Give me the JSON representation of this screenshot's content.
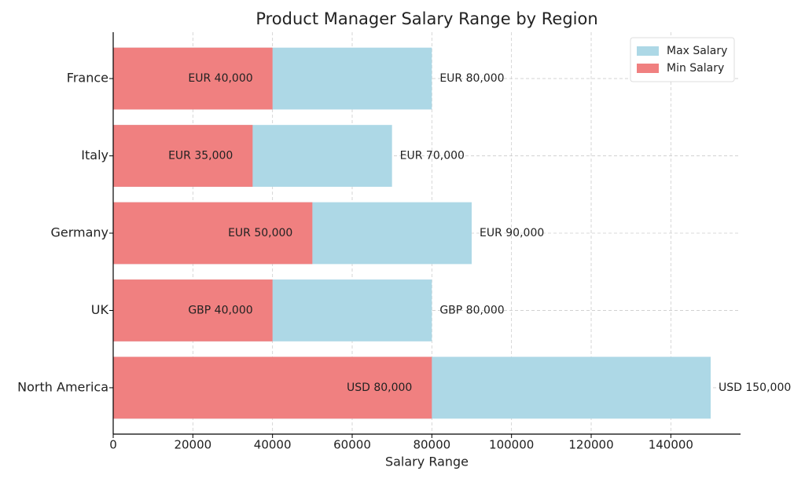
{
  "chart_data": {
    "type": "overlay-barh",
    "title": "Product Manager Salary Range by Region",
    "xlabel": "Salary Range",
    "categories": [
      "North America",
      "UK",
      "Germany",
      "Italy",
      "France"
    ],
    "series": [
      {
        "name": "Max Salary",
        "color": "#add8e6",
        "values": [
          150000,
          80000,
          90000,
          70000,
          80000
        ],
        "value_labels": [
          "USD 150,000",
          "GBP 80,000",
          "EUR 90,000",
          "EUR 70,000",
          "EUR 80,000"
        ]
      },
      {
        "name": "Min Salary",
        "color": "#f08080",
        "values": [
          80000,
          40000,
          50000,
          35000,
          40000
        ],
        "value_labels": [
          "USD 80,000",
          "GBP 40,000",
          "EUR 50,000",
          "EUR 35,000",
          "EUR 40,000"
        ]
      }
    ],
    "xlim": [
      0,
      157500
    ],
    "xticks": [
      0,
      20000,
      40000,
      60000,
      80000,
      100000,
      120000,
      140000
    ],
    "grid": true,
    "legend": "upper-right"
  }
}
